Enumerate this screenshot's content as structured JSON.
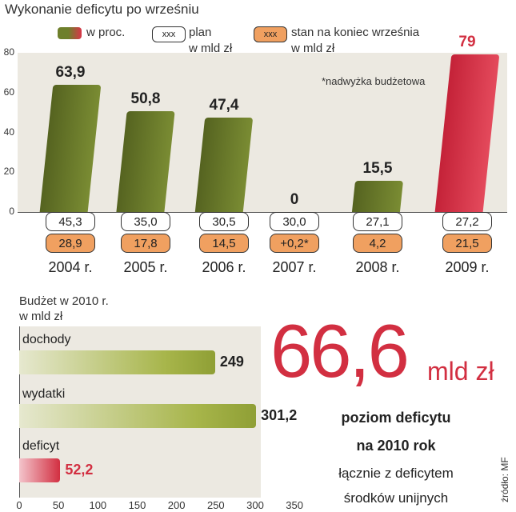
{
  "title": "Wykonanie deficytu po wrześniu",
  "legend": {
    "pct_label": "w proc.",
    "box_text": "xxx",
    "plan_label_1": "plan",
    "plan_label_2": "w mld zł",
    "stan_label_1": "stan na koniec września",
    "stan_label_2": "w mld zł"
  },
  "note": "*nadwyżka budżetowa",
  "colors": {
    "bar_green": "#6e7f2b",
    "bar_red": "#d22f41",
    "stan_orange": "#f0a060",
    "chart_bg": "#ece9e1",
    "hbar_green": "#a7b54a"
  },
  "chart_data": [
    {
      "type": "bar",
      "title": "Wykonanie deficytu po wrześniu",
      "categories": [
        "2004 r.",
        "2005 r.",
        "2006 r.",
        "2007 r.",
        "2008 r.",
        "2009 r."
      ],
      "y_ticks": [
        "0",
        "20",
        "40",
        "60",
        "80"
      ],
      "ylim": [
        0,
        80
      ],
      "series": [
        {
          "name": "w proc.",
          "values": [
            63.9,
            50.8,
            47.4,
            0,
            15.5,
            79
          ],
          "labels": [
            "63,9",
            "50,8",
            "47,4",
            "0",
            "15,5",
            "79"
          ]
        },
        {
          "name": "plan w mld zł",
          "labels": [
            "45,3",
            "35,0",
            "30,5",
            "30,0",
            "27,1",
            "27,2"
          ]
        },
        {
          "name": "stan na koniec września w mld zł",
          "labels": [
            "28,9",
            "17,8",
            "14,5",
            "+0,2*",
            "4,2",
            "21,5"
          ]
        }
      ]
    },
    {
      "type": "bar",
      "orientation": "horizontal",
      "title": "Budżet w 2010 r.",
      "subtitle": "w mld zł",
      "categories": [
        "dochody",
        "wydatki",
        "deficyt"
      ],
      "values": [
        249,
        301.2,
        52.2
      ],
      "labels": [
        "249",
        "301,2",
        "52,2"
      ],
      "x_ticks": [
        "0",
        "50",
        "100",
        "150",
        "200",
        "250",
        "300",
        "350"
      ],
      "xlim": [
        0,
        350
      ]
    }
  ],
  "headline": {
    "value": "66,6",
    "unit": "mld zł",
    "line1": "poziom deficytu",
    "line2": "na 2010 rok",
    "line3": "łącznie z deficytem",
    "line4": "środków unijnych"
  },
  "source": "źródło: MF"
}
